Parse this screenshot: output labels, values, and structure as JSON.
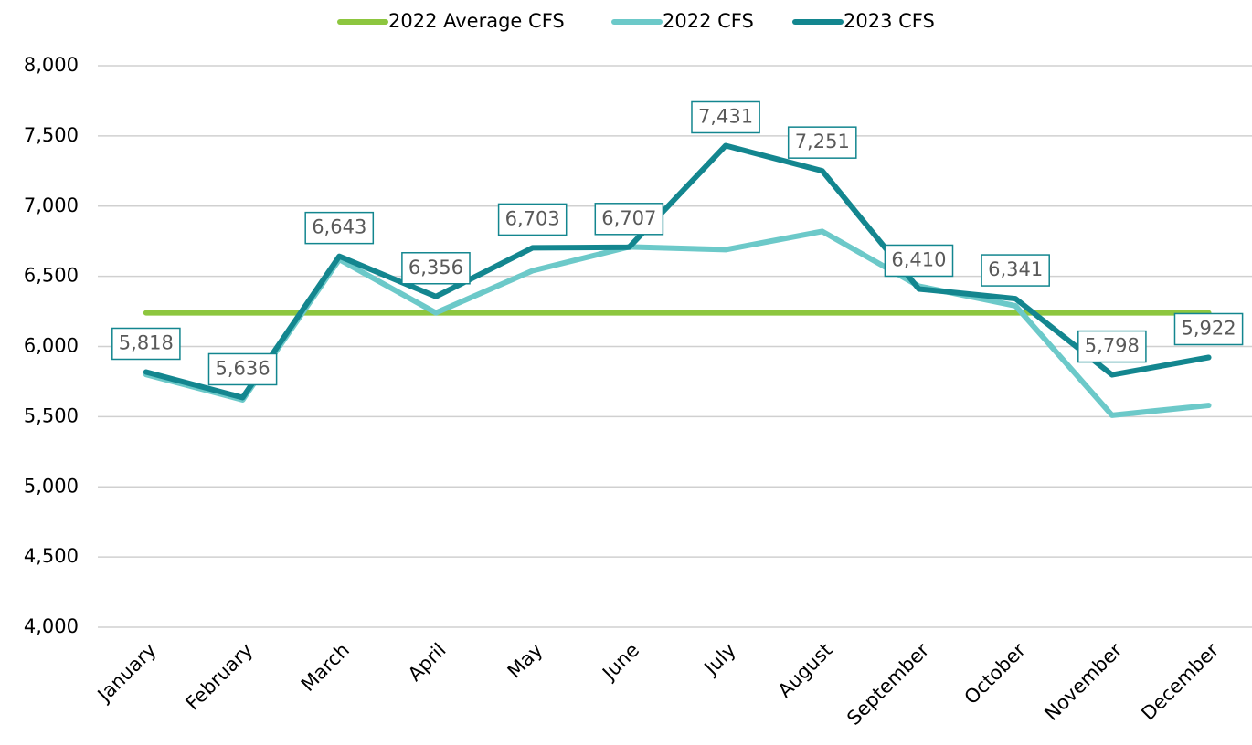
{
  "chart_data": {
    "type": "line",
    "categories": [
      "January",
      "February",
      "March",
      "April",
      "May",
      "June",
      "July",
      "August",
      "September",
      "October",
      "November",
      "December"
    ],
    "series": [
      {
        "name": "2022 Average CFS",
        "color": "#8dc63f",
        "values": [
          6240,
          6240,
          6240,
          6240,
          6240,
          6240,
          6240,
          6240,
          6240,
          6240,
          6240,
          6240
        ]
      },
      {
        "name": "2022 CFS",
        "color": "#6cc9c9",
        "values": [
          5800,
          5620,
          6620,
          6240,
          6540,
          6710,
          6690,
          6820,
          6430,
          6290,
          5510,
          5580
        ]
      },
      {
        "name": "2023 CFS",
        "color": "#13868f",
        "values": [
          5818,
          5636,
          6643,
          6356,
          6703,
          6707,
          7431,
          7251,
          6410,
          6341,
          5798,
          5922
        ],
        "value_labels": [
          "5,818",
          "5,636",
          "6,643",
          "6,356",
          "6,703",
          "6,707",
          "7,431",
          "7,251",
          "6,410",
          "6,341",
          "5,798",
          "5,922"
        ]
      }
    ],
    "ylim": [
      4000,
      8000
    ],
    "yticks": [
      {
        "value": 4000,
        "label": "4,000"
      },
      {
        "value": 4500,
        "label": "4,500"
      },
      {
        "value": 5000,
        "label": "5,000"
      },
      {
        "value": 5500,
        "label": "5,500"
      },
      {
        "value": 6000,
        "label": "6,000"
      },
      {
        "value": 6500,
        "label": "6,500"
      },
      {
        "value": 7000,
        "label": "7,000"
      },
      {
        "value": 7500,
        "label": "7,500"
      },
      {
        "value": 8000,
        "label": "8,000"
      }
    ],
    "grid": true,
    "legend": "top"
  }
}
